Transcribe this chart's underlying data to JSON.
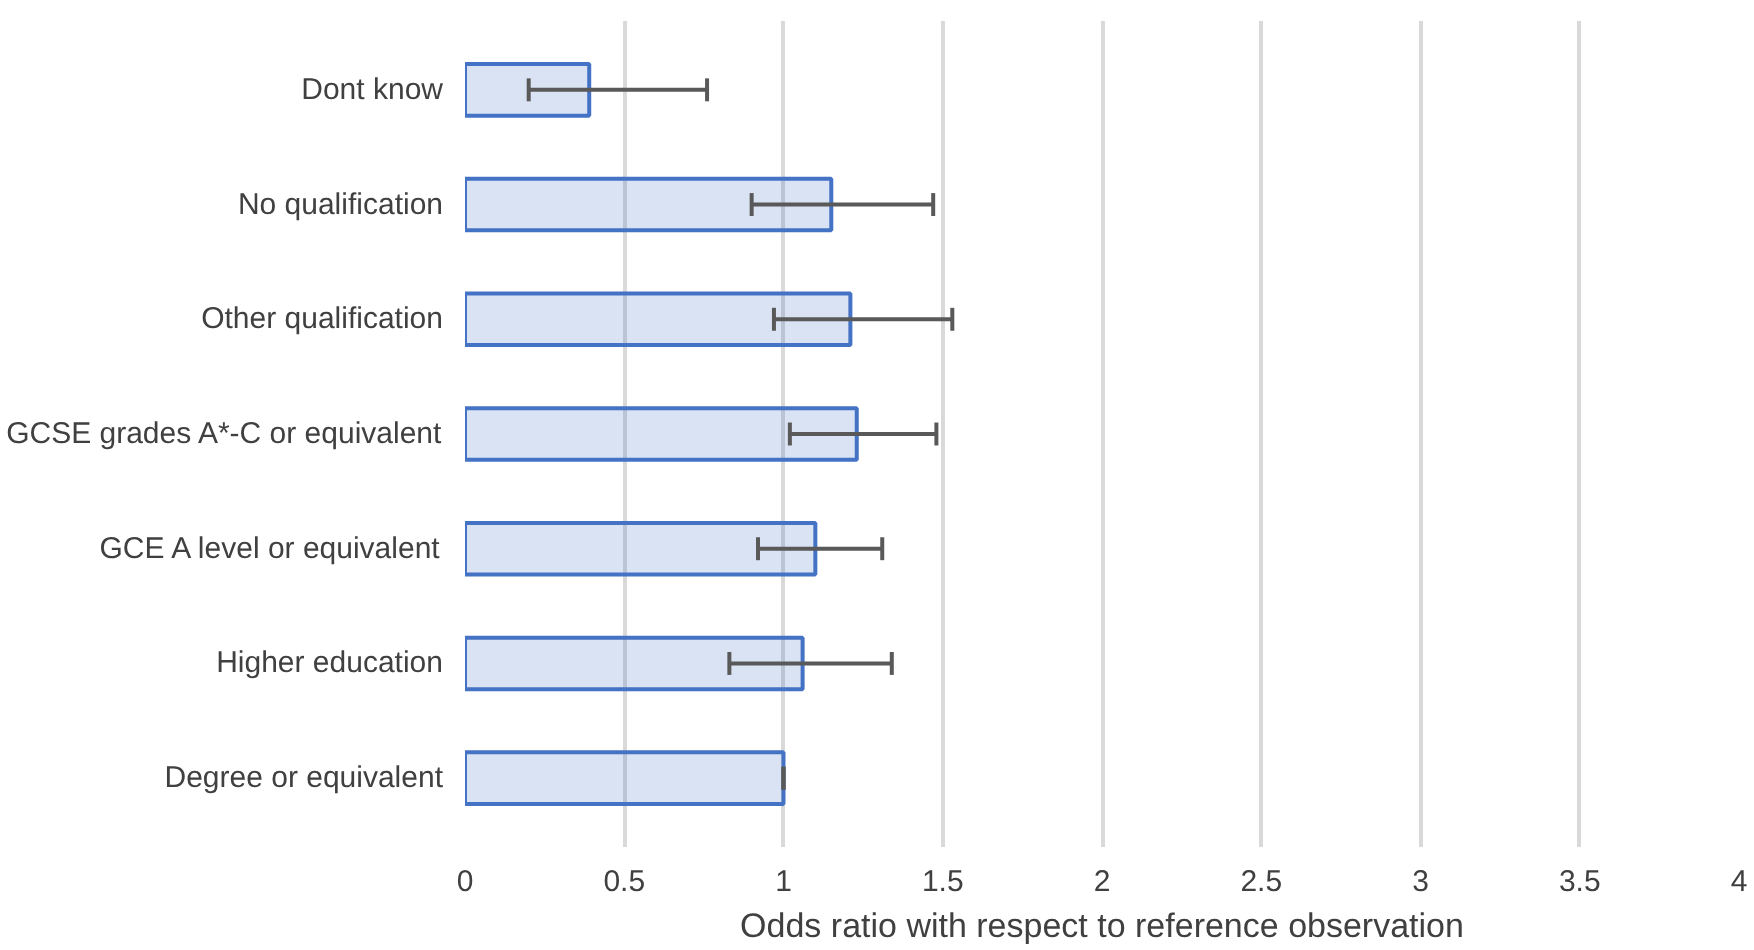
{
  "chart_data": {
    "type": "bar",
    "orientation": "horizontal",
    "xlabel": "Odds ratio with respect to reference observation",
    "categories": [
      "Dont know",
      "No qualification",
      "Other qualification",
      "GCSE grades A*-C or equivalent",
      "GCE A level or equivalent",
      "Higher education",
      "Degree or equivalent"
    ],
    "series": [
      {
        "color": "#4472c4",
        "values": [
          0.39,
          1.15,
          1.21,
          1.23,
          1.1,
          1.06,
          1.0
        ],
        "errors": [
          [
            0.2,
            0.76
          ],
          [
            0.9,
            1.47
          ],
          [
            0.97,
            1.53
          ],
          [
            1.02,
            1.48
          ],
          [
            0.92,
            1.31
          ],
          [
            0.83,
            1.34
          ],
          [
            1.0,
            1.0
          ]
        ]
      }
    ],
    "xlim": [
      0,
      4
    ],
    "xticks": [
      0,
      0.5,
      1,
      1.5,
      2,
      2.5,
      3,
      3.5,
      4
    ],
    "grid": "x"
  }
}
